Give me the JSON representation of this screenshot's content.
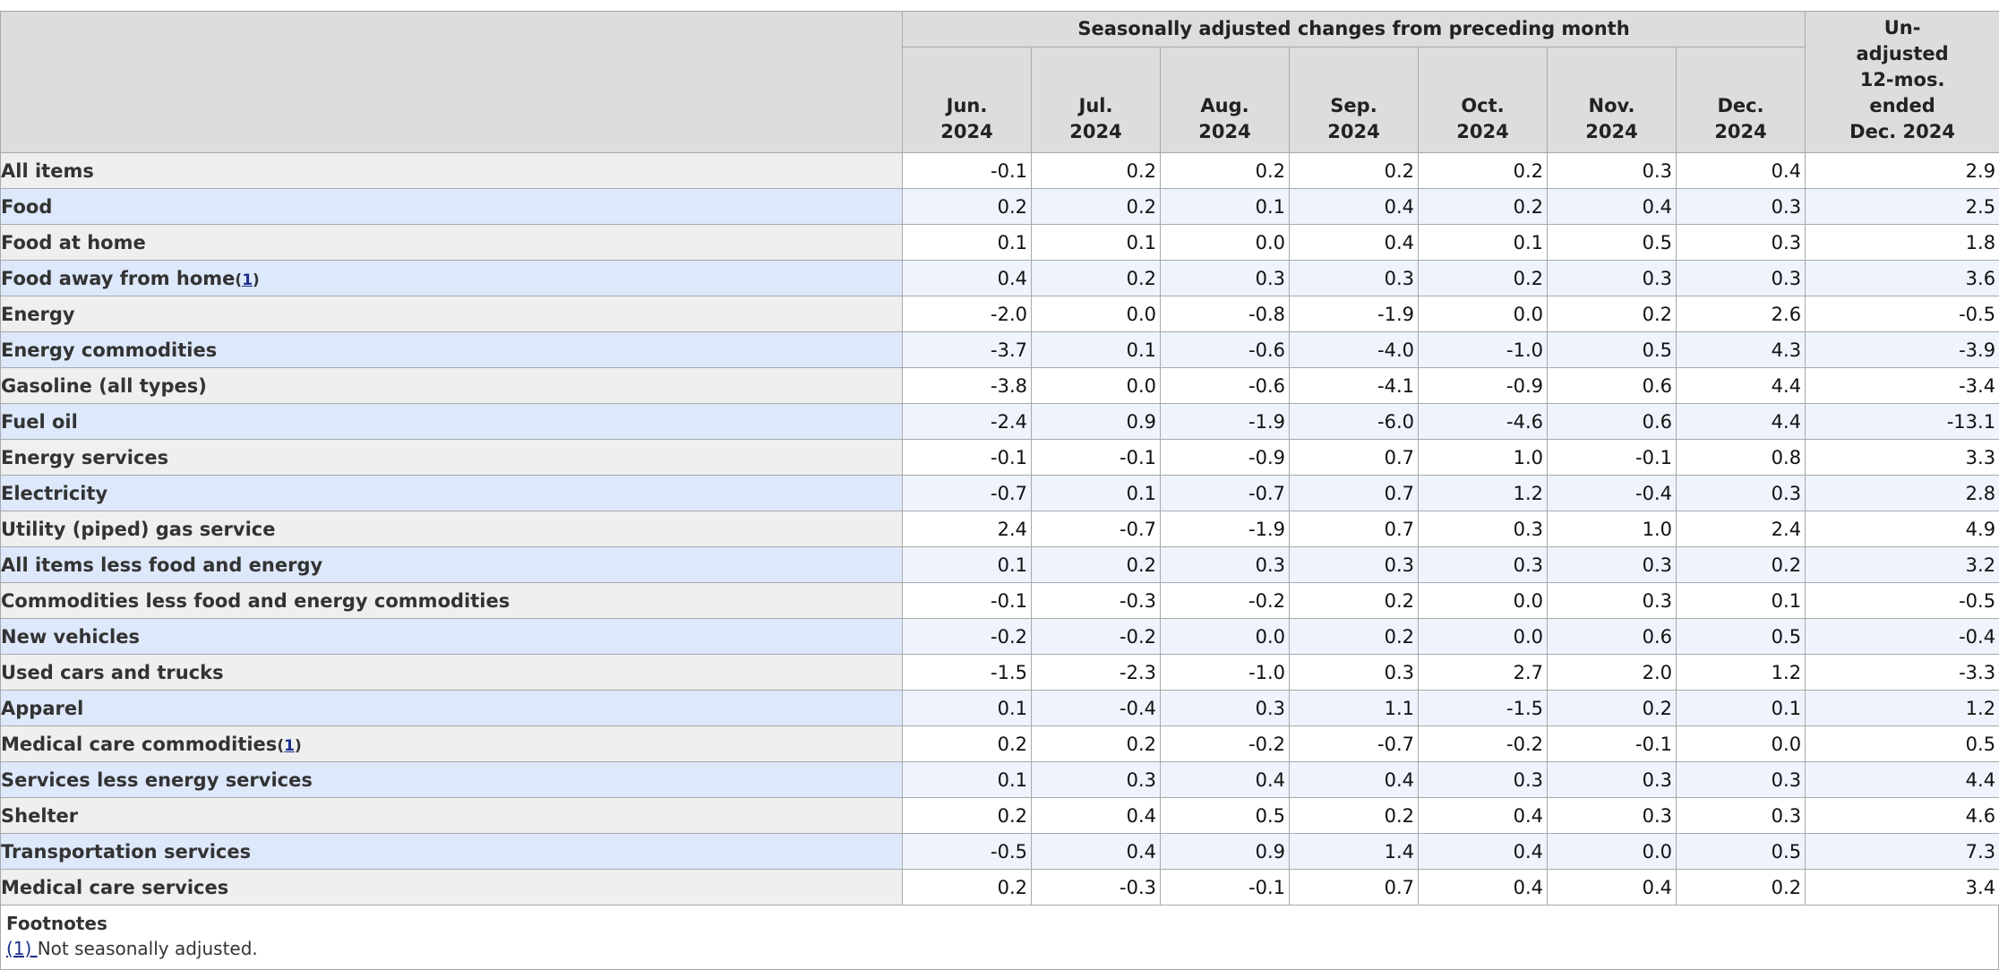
{
  "header": {
    "group_title": "Seasonally adjusted changes from preceding month",
    "months": [
      {
        "label": "Jun.",
        "year": "2024"
      },
      {
        "label": "Jul.",
        "year": "2024"
      },
      {
        "label": "Aug.",
        "year": "2024"
      },
      {
        "label": "Sep.",
        "year": "2024"
      },
      {
        "label": "Oct.",
        "year": "2024"
      },
      {
        "label": "Nov.",
        "year": "2024"
      },
      {
        "label": "Dec.",
        "year": "2024"
      }
    ],
    "annual": [
      "Un-",
      "adjusted",
      "12-mos.",
      "ended",
      "Dec. 2024"
    ]
  },
  "rows": [
    {
      "label": "All items",
      "level": 0,
      "footnote": "",
      "values": [
        "-0.1",
        "0.2",
        "0.2",
        "0.2",
        "0.2",
        "0.3",
        "0.4"
      ],
      "annual": "2.9"
    },
    {
      "label": "Food",
      "level": 1,
      "footnote": "",
      "values": [
        "0.2",
        "0.2",
        "0.1",
        "0.4",
        "0.2",
        "0.4",
        "0.3"
      ],
      "annual": "2.5"
    },
    {
      "label": "Food at home",
      "level": 2,
      "footnote": "",
      "values": [
        "0.1",
        "0.1",
        "0.0",
        "0.4",
        "0.1",
        "0.5",
        "0.3"
      ],
      "annual": "1.8"
    },
    {
      "label": "Food away from home",
      "level": 2,
      "footnote": "1",
      "values": [
        "0.4",
        "0.2",
        "0.3",
        "0.3",
        "0.2",
        "0.3",
        "0.3"
      ],
      "annual": "3.6"
    },
    {
      "label": "Energy",
      "level": 1,
      "footnote": "",
      "values": [
        "-2.0",
        "0.0",
        "-0.8",
        "-1.9",
        "0.0",
        "0.2",
        "2.6"
      ],
      "annual": "-0.5"
    },
    {
      "label": "Energy commodities",
      "level": 2,
      "footnote": "",
      "values": [
        "-3.7",
        "0.1",
        "-0.6",
        "-4.0",
        "-1.0",
        "0.5",
        "4.3"
      ],
      "annual": "-3.9"
    },
    {
      "label": "Gasoline (all types)",
      "level": 3,
      "footnote": "",
      "values": [
        "-3.8",
        "0.0",
        "-0.6",
        "-4.1",
        "-0.9",
        "0.6",
        "4.4"
      ],
      "annual": "-3.4"
    },
    {
      "label": "Fuel oil",
      "level": 3,
      "footnote": "",
      "values": [
        "-2.4",
        "0.9",
        "-1.9",
        "-6.0",
        "-4.6",
        "0.6",
        "4.4"
      ],
      "annual": "-13.1"
    },
    {
      "label": "Energy services",
      "level": 2,
      "footnote": "",
      "values": [
        "-0.1",
        "-0.1",
        "-0.9",
        "0.7",
        "1.0",
        "-0.1",
        "0.8"
      ],
      "annual": "3.3"
    },
    {
      "label": "Electricity",
      "level": 3,
      "footnote": "",
      "values": [
        "-0.7",
        "0.1",
        "-0.7",
        "0.7",
        "1.2",
        "-0.4",
        "0.3"
      ],
      "annual": "2.8"
    },
    {
      "label": "Utility (piped) gas service",
      "level": 3,
      "footnote": "",
      "values": [
        "2.4",
        "-0.7",
        "-1.9",
        "0.7",
        "0.3",
        "1.0",
        "2.4"
      ],
      "annual": "4.9"
    },
    {
      "label": "All items less food and energy",
      "level": 1,
      "footnote": "",
      "values": [
        "0.1",
        "0.2",
        "0.3",
        "0.3",
        "0.3",
        "0.3",
        "0.2"
      ],
      "annual": "3.2"
    },
    {
      "label": "Commodities less food and energy commodities",
      "level": 2,
      "footnote": "",
      "values": [
        "-0.1",
        "-0.3",
        "-0.2",
        "0.2",
        "0.0",
        "0.3",
        "0.1"
      ],
      "annual": "-0.5"
    },
    {
      "label": "New vehicles",
      "level": 3,
      "footnote": "",
      "values": [
        "-0.2",
        "-0.2",
        "0.0",
        "0.2",
        "0.0",
        "0.6",
        "0.5"
      ],
      "annual": "-0.4"
    },
    {
      "label": "Used cars and trucks",
      "level": 3,
      "footnote": "",
      "values": [
        "-1.5",
        "-2.3",
        "-1.0",
        "0.3",
        "2.7",
        "2.0",
        "1.2"
      ],
      "annual": "-3.3"
    },
    {
      "label": "Apparel",
      "level": 3,
      "footnote": "",
      "values": [
        "0.1",
        "-0.4",
        "0.3",
        "1.1",
        "-1.5",
        "0.2",
        "0.1"
      ],
      "annual": "1.2"
    },
    {
      "label": "Medical care commodities",
      "level": 3,
      "footnote": "1",
      "values": [
        "0.2",
        "0.2",
        "-0.2",
        "-0.7",
        "-0.2",
        "-0.1",
        "0.0"
      ],
      "annual": "0.5"
    },
    {
      "label": "Services less energy services",
      "level": 2,
      "footnote": "",
      "values": [
        "0.1",
        "0.3",
        "0.4",
        "0.4",
        "0.3",
        "0.3",
        "0.3"
      ],
      "annual": "4.4"
    },
    {
      "label": "Shelter",
      "level": 3,
      "footnote": "",
      "values": [
        "0.2",
        "0.4",
        "0.5",
        "0.2",
        "0.4",
        "0.3",
        "0.3"
      ],
      "annual": "4.6"
    },
    {
      "label": "Transportation services",
      "level": 3,
      "footnote": "",
      "values": [
        "-0.5",
        "0.4",
        "0.9",
        "1.4",
        "0.4",
        "0.0",
        "0.5"
      ],
      "annual": "7.3"
    },
    {
      "label": "Medical care services",
      "level": 3,
      "footnote": "",
      "values": [
        "0.2",
        "-0.3",
        "-0.1",
        "0.7",
        "0.4",
        "0.4",
        "0.2"
      ],
      "annual": "3.4"
    }
  ],
  "footnotes": {
    "title": "Footnotes",
    "items": [
      {
        "ref": "(1) ",
        "text": "Not seasonally adjusted."
      }
    ]
  },
  "colors": {
    "header_bg": "#dddddd",
    "label_odd_bg": "#efefef",
    "label_even_bg": "#dde8fa",
    "value_even_bg": "#eef3fc",
    "link": "#1a2f8f"
  }
}
